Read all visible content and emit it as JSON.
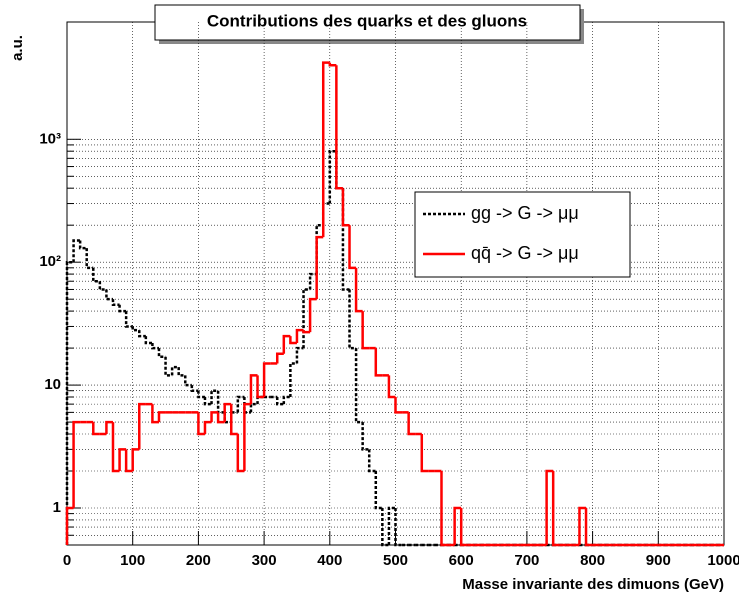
{
  "chart_data": {
    "type": "histogram",
    "title": "Contributions des quarks et des gluons",
    "x_label": "Masse invariante des dimuons (GeV)",
    "y_label": "a.u.",
    "log_y": true,
    "grid": true,
    "legend_position": "right",
    "bins": [
      0,
      10,
      20,
      30,
      40,
      50,
      60,
      70,
      80,
      90,
      100,
      110,
      120,
      130,
      140,
      150,
      160,
      170,
      180,
      190,
      200,
      210,
      220,
      230,
      240,
      250,
      260,
      270,
      280,
      290,
      300,
      310,
      320,
      330,
      340,
      350,
      360,
      370,
      380,
      390,
      400,
      410,
      420,
      430,
      440,
      450,
      460,
      470,
      480,
      490,
      500,
      510,
      520,
      530,
      540,
      550,
      560,
      570,
      580,
      590,
      600,
      610,
      620,
      630,
      640,
      650,
      660,
      670,
      680,
      690,
      700,
      710,
      720,
      730,
      740,
      750,
      760,
      770,
      780,
      790,
      800,
      810,
      820,
      830,
      840,
      850,
      860,
      870,
      880,
      890,
      900,
      910,
      920,
      930,
      940,
      950,
      960,
      970,
      980,
      990,
      1000
    ],
    "series": [
      {
        "name": "gg -> G -> μμ",
        "color": "#000000",
        "dashed": true,
        "values": [
          100,
          150,
          130,
          90,
          70,
          60,
          50,
          45,
          40,
          30,
          28,
          25,
          22,
          20,
          17,
          12,
          14,
          12,
          10,
          9,
          8,
          7,
          9,
          6,
          5,
          6,
          8,
          6,
          7,
          8,
          8,
          8,
          7,
          8,
          15,
          20,
          60,
          80,
          200,
          300,
          800,
          400,
          60,
          20,
          5,
          3,
          2,
          1,
          0,
          1,
          0,
          0,
          0,
          0,
          0,
          0,
          0,
          0,
          0,
          0,
          0,
          0,
          0,
          0,
          0,
          0,
          0,
          0,
          0,
          0,
          0,
          0,
          0,
          0,
          0,
          0,
          0,
          0,
          0,
          0,
          0,
          0,
          0,
          0,
          0,
          0,
          0,
          0,
          0,
          0,
          0,
          0,
          0,
          0,
          0,
          0,
          0,
          0,
          0,
          0
        ]
      },
      {
        "name": "qq̄ -> G -> μμ",
        "color": "#ff0000",
        "dashed": false,
        "values": [
          1,
          5,
          5,
          5,
          4,
          4,
          5,
          2,
          3,
          2,
          3,
          7,
          7,
          5,
          6,
          6,
          6,
          6,
          6,
          6,
          4,
          5,
          6,
          5,
          7,
          4,
          2,
          7,
          12,
          8,
          15,
          15,
          18,
          25,
          22,
          28,
          27,
          50,
          160,
          4200,
          4000,
          400,
          200,
          90,
          40,
          20,
          20,
          12,
          12,
          8,
          6,
          6,
          4,
          4,
          2,
          2,
          2,
          0,
          0,
          1,
          0,
          0,
          0,
          0,
          0,
          0,
          0,
          0,
          0,
          0,
          0,
          0,
          0,
          2,
          0,
          0,
          0,
          0,
          1,
          0,
          0,
          0,
          0,
          0,
          0,
          0,
          0,
          0,
          0,
          0,
          0,
          0,
          0,
          0,
          0,
          0,
          0,
          0,
          0,
          0
        ]
      }
    ],
    "xlim": [
      0,
      1000
    ],
    "xticks": [
      0,
      100,
      200,
      300,
      400,
      500,
      600,
      700,
      800,
      900,
      1000
    ],
    "ylim": [
      0.5,
      9000
    ],
    "yticks": [
      1,
      10,
      {
        "value": 100,
        "label": "10²"
      },
      {
        "value": 1000,
        "label": "10³"
      }
    ]
  }
}
